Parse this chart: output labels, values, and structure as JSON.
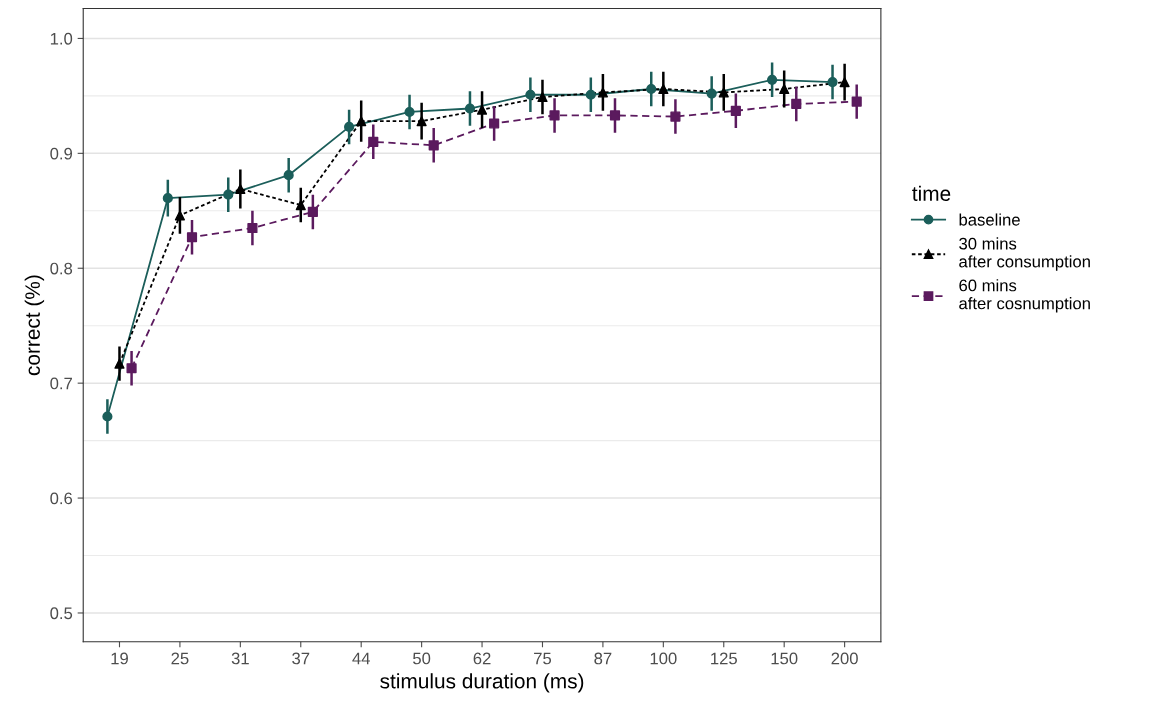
{
  "chart_data": {
    "type": "line",
    "xlabel": "stimulus duration (ms)",
    "ylabel": "correct (%)",
    "legend_title": "time",
    "legend": "right",
    "grid": "y",
    "categories": [
      "19",
      "25",
      "31",
      "37",
      "44",
      "50",
      "62",
      "75",
      "87",
      "100",
      "125",
      "150",
      "200"
    ],
    "ylim": [
      0.475,
      1.026
    ],
    "yticks": [
      0.5,
      0.6,
      0.7,
      0.8,
      0.9,
      {
        "value": 1.0,
        "label": "1.0"
      }
    ],
    "series": [
      {
        "name": "baseline",
        "color": "#1b5e5a",
        "marker": "circle",
        "line_style": "solid",
        "values": [
          0.671,
          0.861,
          0.864,
          0.881,
          0.923,
          0.936,
          0.939,
          0.951,
          0.951,
          0.956,
          0.952,
          0.964,
          0.962
        ],
        "errors": [
          0.015,
          0.016,
          0.015,
          0.015,
          0.015,
          0.015,
          0.015,
          0.015,
          0.015,
          0.015,
          0.015,
          0.015,
          0.015
        ]
      },
      {
        "name": "30 mins\nafter consumption",
        "color": "#000000",
        "marker": "triangle",
        "line_style": "dotted",
        "values": [
          0.717,
          0.846,
          0.869,
          0.855,
          0.928,
          0.928,
          0.938,
          0.949,
          0.953,
          0.956,
          0.953,
          0.956,
          0.962
        ],
        "errors": [
          0.015,
          0.016,
          0.017,
          0.015,
          0.018,
          0.016,
          0.016,
          0.015,
          0.016,
          0.015,
          0.016,
          0.016,
          0.016
        ]
      },
      {
        "name": "60 mins\nafter cosnumption",
        "color": "#5b1a5e",
        "marker": "square",
        "line_style": "dashed",
        "values": [
          0.713,
          0.827,
          0.835,
          0.849,
          0.91,
          0.907,
          0.926,
          0.933,
          0.933,
          0.932,
          0.937,
          0.943,
          0.945
        ],
        "errors": [
          0.015,
          0.015,
          0.015,
          0.015,
          0.015,
          0.015,
          0.015,
          0.015,
          0.015,
          0.015,
          0.015,
          0.015,
          0.015
        ]
      }
    ]
  }
}
